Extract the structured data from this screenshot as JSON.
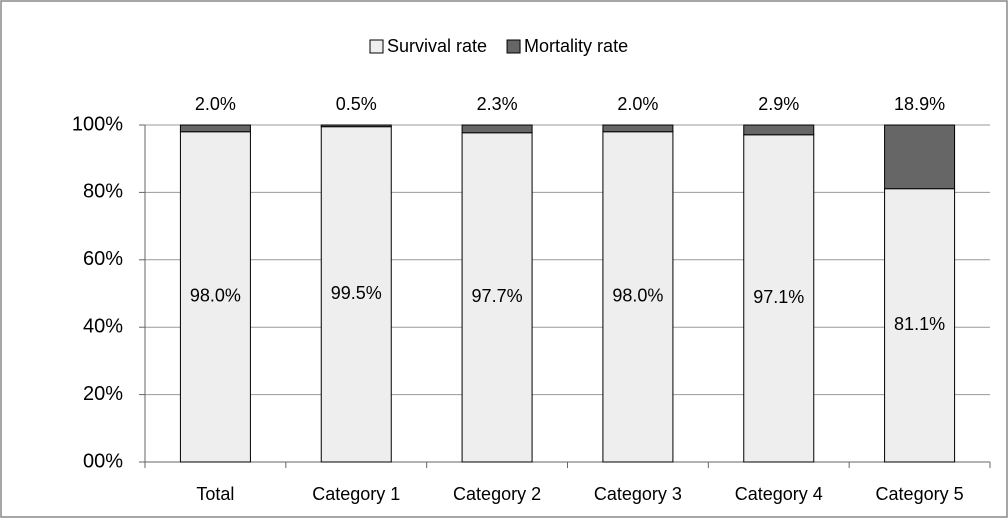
{
  "chart_data": {
    "type": "stacked_bar",
    "categories": [
      "Total",
      "Category 1",
      "Category 2",
      "Category 3",
      "Category 4",
      "Category 5"
    ],
    "series": [
      {
        "name": "Survival rate",
        "color": "#eeeeee",
        "values": [
          98.0,
          99.5,
          97.7,
          98.0,
          97.1,
          81.1
        ],
        "value_labels": [
          "98.0%",
          "99.5%",
          "97.7%",
          "98.0%",
          "97.1%",
          "81.1%"
        ]
      },
      {
        "name": "Mortality rate",
        "color": "#666666",
        "values": [
          2.0,
          0.5,
          2.3,
          2.0,
          2.9,
          18.9
        ],
        "value_labels": [
          "2.0%",
          "0.5%",
          "2.3%",
          "2.0%",
          "2.9%",
          "18.9%"
        ]
      }
    ],
    "ylim": [
      0,
      100
    ],
    "yticks": [
      {
        "value": 0,
        "label": "00%"
      },
      {
        "value": 20,
        "label": "20%"
      },
      {
        "value": 40,
        "label": "40%"
      },
      {
        "value": 60,
        "label": "60%"
      },
      {
        "value": 80,
        "label": "80%"
      },
      {
        "value": 100,
        "label": "100%"
      }
    ],
    "grid": true,
    "legend": "top"
  }
}
